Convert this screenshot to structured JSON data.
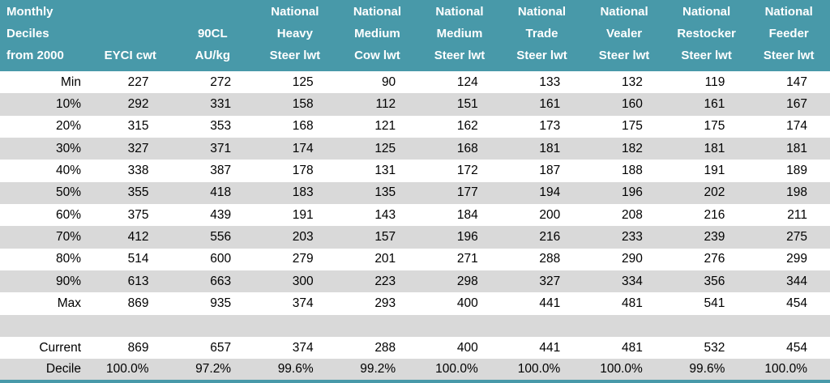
{
  "colors": {
    "header_bg": "#4899a9",
    "alt_row_bg": "#d9d9d9",
    "header_text": "#ffffff",
    "body_text": "#000000"
  },
  "chart_data": {
    "type": "table",
    "title": "Monthly Deciles from 2000 - cattle price indicators",
    "corner_header_lines": [
      "Monthly",
      "Deciles",
      "from 2000"
    ],
    "column_headers": [
      {
        "label": "EYCI cwt",
        "lines": [
          "EYCI cwt"
        ]
      },
      {
        "label": "90CL AU/kg",
        "lines": [
          "90CL",
          "AU/kg"
        ]
      },
      {
        "label": "National Heavy Steer lwt",
        "lines": [
          "National",
          "Heavy",
          "Steer lwt"
        ]
      },
      {
        "label": "National Medium Cow lwt",
        "lines": [
          "National",
          "Medium",
          "Cow lwt"
        ]
      },
      {
        "label": "National Medium Steer lwt",
        "lines": [
          "National",
          "Medium",
          "Steer lwt"
        ]
      },
      {
        "label": "National Trade Steer lwt",
        "lines": [
          "National",
          "Trade",
          "Steer lwt"
        ]
      },
      {
        "label": "National Vealer Steer lwt",
        "lines": [
          "National",
          "Vealer",
          "Steer lwt"
        ]
      },
      {
        "label": "National Restocker Steer lwt",
        "lines": [
          "National",
          "Restocker",
          "Steer lwt"
        ]
      },
      {
        "label": "National Feeder Steer lwt",
        "lines": [
          "National",
          "Feeder",
          "Steer lwt"
        ]
      }
    ],
    "rows": [
      {
        "label": "Min",
        "values": [
          227,
          272,
          125,
          90,
          124,
          133,
          132,
          119,
          147
        ]
      },
      {
        "label": "10%",
        "values": [
          292,
          331,
          158,
          112,
          151,
          161,
          160,
          161,
          167
        ]
      },
      {
        "label": "20%",
        "values": [
          315,
          353,
          168,
          121,
          162,
          173,
          175,
          175,
          174
        ]
      },
      {
        "label": "30%",
        "values": [
          327,
          371,
          174,
          125,
          168,
          181,
          182,
          181,
          181
        ]
      },
      {
        "label": "40%",
        "values": [
          338,
          387,
          178,
          131,
          172,
          187,
          188,
          191,
          189
        ]
      },
      {
        "label": "50%",
        "values": [
          355,
          418,
          183,
          135,
          177,
          194,
          196,
          202,
          198
        ]
      },
      {
        "label": "60%",
        "values": [
          375,
          439,
          191,
          143,
          184,
          200,
          208,
          216,
          211
        ]
      },
      {
        "label": "70%",
        "values": [
          412,
          556,
          203,
          157,
          196,
          216,
          233,
          239,
          275
        ]
      },
      {
        "label": "80%",
        "values": [
          514,
          600,
          279,
          201,
          271,
          288,
          290,
          276,
          299
        ]
      },
      {
        "label": "90%",
        "values": [
          613,
          663,
          300,
          223,
          298,
          327,
          334,
          356,
          344
        ]
      },
      {
        "label": "Max",
        "values": [
          869,
          935,
          374,
          293,
          400,
          441,
          481,
          541,
          454
        ]
      },
      {
        "label": "",
        "values": [
          "",
          "",
          "",
          "",
          "",
          "",
          "",
          "",
          ""
        ]
      },
      {
        "label": "Current",
        "values": [
          869,
          657,
          374,
          288,
          400,
          441,
          481,
          532,
          454
        ]
      },
      {
        "label": "Decile",
        "values": [
          "100.0%",
          "97.2%",
          "99.6%",
          "99.2%",
          "100.0%",
          "100.0%",
          "100.0%",
          "99.6%",
          "100.0%"
        ]
      }
    ]
  }
}
